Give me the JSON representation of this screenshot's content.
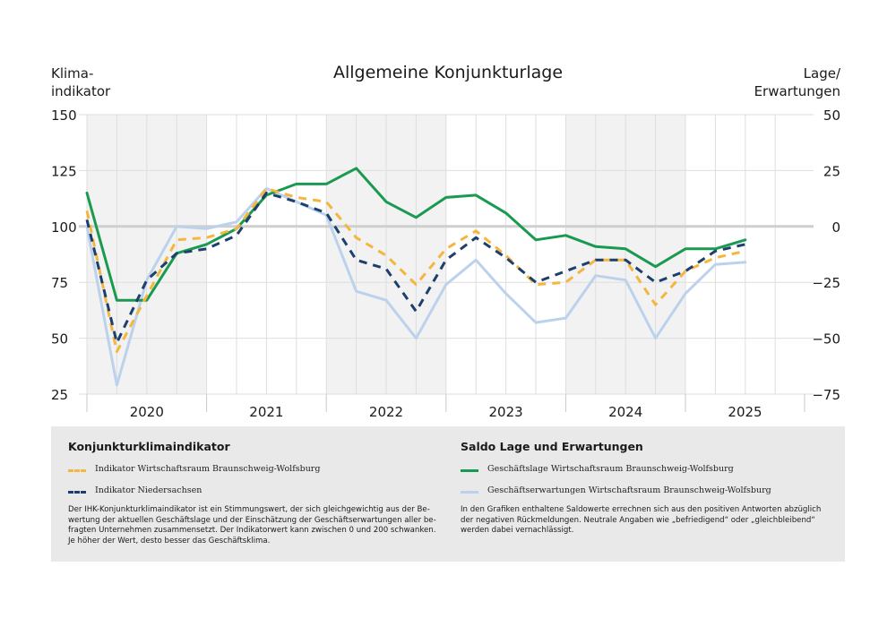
{
  "chart_data": {
    "type": "line",
    "title": "Allgemeine Konjunkturlage",
    "ylabel_left": [
      "Klima-",
      "indikator"
    ],
    "ylabel_right": [
      "Lage/",
      "Erwartungen"
    ],
    "left_ticks": [
      150,
      125,
      100,
      75,
      50,
      25
    ],
    "right_ticks": [
      "50",
      "25",
      "0",
      "-25",
      "-50",
      "-75"
    ],
    "ylim_left": [
      25,
      150
    ],
    "ylim_right": [
      -75,
      50
    ],
    "x_labels": [
      "2020",
      "2021",
      "2022",
      "2023",
      "2024",
      "2025"
    ],
    "x": [
      "2019-Q4",
      "2020-Q1",
      "2020-Q2",
      "2020-Q3",
      "2020-Q4",
      "2021-Q1",
      "2021-Q2",
      "2021-Q3",
      "2021-Q4",
      "2022-Q1",
      "2022-Q2",
      "2022-Q3",
      "2022-Q4",
      "2023-Q1",
      "2023-Q2",
      "2023-Q3",
      "2023-Q4",
      "2024-Q1",
      "2024-Q2",
      "2024-Q3",
      "2024-Q4",
      "2025-Q1",
      "2025-Q2"
    ],
    "grid": true,
    "shaded_years": [
      "2020",
      "2022",
      "2024"
    ],
    "series": [
      {
        "name": "Indikator Wirtschaftsraum Braunschweig-Wolfsburg",
        "axis": "left",
        "style": "dashed",
        "color": "#f4b63f",
        "values": [
          107,
          44,
          69,
          94,
          95,
          99,
          117,
          113,
          111,
          95,
          87,
          74,
          90,
          98,
          87,
          74,
          75,
          85,
          85,
          65,
          80,
          86,
          89
        ]
      },
      {
        "name": "Indikator Niedersachsen",
        "axis": "left",
        "style": "dashed",
        "color": "#1c3f6e",
        "values": [
          103,
          48,
          76,
          88,
          90,
          96,
          115,
          111,
          106,
          85,
          81,
          62,
          85,
          95,
          86,
          75,
          80,
          85,
          85,
          75,
          80,
          89,
          92
        ]
      },
      {
        "name": "Geschäftslage Wirtschaftsraum Braunschweig-Wolfsburg",
        "axis": "right",
        "style": "solid",
        "color": "#1a9a50",
        "values": [
          15,
          -33,
          -33,
          -12,
          -8,
          -1,
          14,
          19,
          19,
          26,
          11,
          4,
          13,
          14,
          6,
          -6,
          -4,
          -9,
          -10,
          -18,
          -10,
          -10,
          -6
        ]
      },
      {
        "name": "Geschäftserwartungen Wirtschaftsraum Braunschweig-Wolfsburg",
        "axis": "right",
        "style": "solid",
        "color": "#bcd2ec",
        "values": [
          0,
          -71,
          -24,
          0,
          -1,
          2,
          17,
          11,
          5,
          -29,
          -33,
          -50,
          -26,
          -15,
          -30,
          -43,
          -41,
          -22,
          -24,
          -50,
          -30,
          -17,
          -16
        ]
      }
    ]
  },
  "legend": {
    "left_heading": "Konjunkturklimaindikator",
    "right_heading": "Saldo Lage und Erwartungen",
    "left_items": [
      {
        "label": "Indikator Wirtschaftsraum Braunschweig-Wolfsburg",
        "color": "#f4b63f",
        "style": "dashed"
      },
      {
        "label": "Indikator Niedersachsen",
        "color": "#1c3f6e",
        "style": "dashed"
      }
    ],
    "right_items": [
      {
        "label": "Geschäftslage Wirtschaftsraum Braunschweig-Wolfsburg",
        "color": "#1a9a50",
        "style": "solid"
      },
      {
        "label": "Geschäftserwartungen Wirtschaftsraum Braunschweig-Wolfsburg",
        "color": "#bcd2ec",
        "style": "solid"
      }
    ],
    "left_note": [
      "Der IHK-Konjunkturklimaindikator ist ein Stimmungswert, der sich gleichgewichtig aus der Be-",
      "wertung der aktuellen Geschäftslage und der Einschätzung der Geschäftserwartungen aller be-",
      "fragten Unternehmen zusammensetzt. Der Indikatorwert kann zwischen 0 und 200 schwanken.",
      "Je höher der Wert, desto besser das Geschäftsklima."
    ],
    "right_note": [
      "In den Grafiken enthaltene Saldowerte errechnen sich aus den positiven Antworten abzüglich",
      "der negativen Rückmeldungen. Neutrale Angaben wie „befriedigend“ oder „gleichbleibend“",
      "werden dabei vernachlässigt."
    ]
  }
}
